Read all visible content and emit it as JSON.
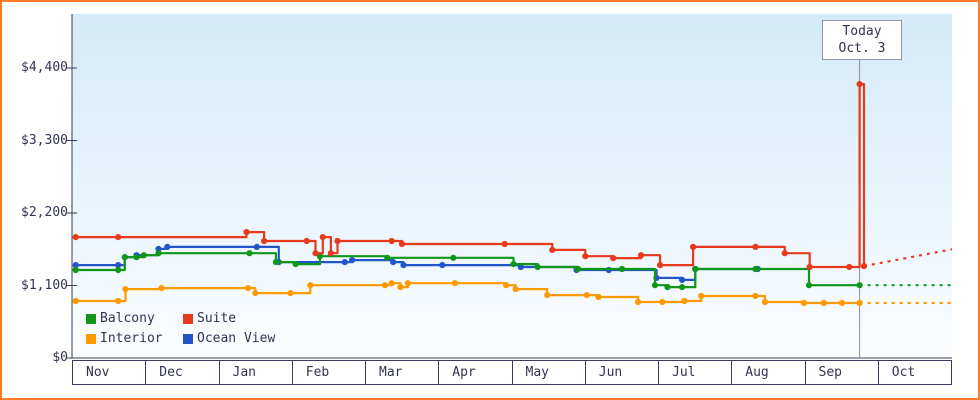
{
  "colors": {
    "frame_border": "#ff7b29",
    "axis": "#3a3a5e",
    "today_line": "#8c8ca3",
    "plot_bg_top": "#d3eaf8",
    "plot_bg_bottom": "#fbfdff"
  },
  "today_annotation": {
    "line1": "Today",
    "line2": "Oct. 3"
  },
  "chart_data": {
    "type": "line",
    "description": "Cruise cabin price history by category with dotted price projection after today",
    "x_unit": "months",
    "x_range": [
      0,
      12
    ],
    "y_range": [
      0,
      4400
    ],
    "x_tick_labels": [
      "Nov",
      "Dec",
      "Jan",
      "Feb",
      "Mar",
      "Apr",
      "May",
      "Jun",
      "Jul",
      "Aug",
      "Sep",
      "Oct"
    ],
    "y_tick_labels": [
      "$0",
      "$1,100",
      "$2,200",
      "$3,300",
      "$4,400"
    ],
    "y_tick_values": [
      0,
      1100,
      2200,
      3300,
      4400
    ],
    "grid": false,
    "legend_position": "bottom-left",
    "today": {
      "x": 10.74
    },
    "series": [
      {
        "name": "Balcony",
        "color": "#109618",
        "points": [
          [
            0.05,
            1335
          ],
          [
            0.63,
            1335
          ],
          [
            0.72,
            1530
          ],
          [
            0.88,
            1530
          ],
          [
            0.98,
            1560
          ],
          [
            1.18,
            1590
          ],
          [
            2.42,
            1590
          ],
          [
            2.78,
            1455
          ],
          [
            3.05,
            1425
          ],
          [
            3.38,
            1545
          ],
          [
            4.3,
            1520
          ],
          [
            5.2,
            1520
          ],
          [
            6.02,
            1425
          ],
          [
            6.35,
            1380
          ],
          [
            6.9,
            1350
          ],
          [
            7.5,
            1350
          ],
          [
            7.95,
            1105
          ],
          [
            8.12,
            1075
          ],
          [
            8.32,
            1075
          ],
          [
            8.5,
            1350
          ],
          [
            9.32,
            1350
          ],
          [
            10.05,
            1105
          ],
          [
            10.74,
            1105
          ]
        ],
        "forecast": [
          [
            10.74,
            1105
          ],
          [
            12,
            1105
          ]
        ]
      },
      {
        "name": "Suite",
        "color": "#e8391d",
        "points": [
          [
            0.05,
            1835
          ],
          [
            0.63,
            1835
          ],
          [
            2.38,
            1910
          ],
          [
            2.62,
            1775
          ],
          [
            3.2,
            1775
          ],
          [
            3.32,
            1590
          ],
          [
            3.42,
            1835
          ],
          [
            3.53,
            1590
          ],
          [
            3.62,
            1775
          ],
          [
            4.36,
            1775
          ],
          [
            4.5,
            1730
          ],
          [
            5.9,
            1730
          ],
          [
            6.55,
            1640
          ],
          [
            7.0,
            1545
          ],
          [
            7.38,
            1515
          ],
          [
            7.76,
            1560
          ],
          [
            8.02,
            1410
          ],
          [
            8.47,
            1685
          ],
          [
            9.32,
            1685
          ],
          [
            9.72,
            1590
          ],
          [
            10.06,
            1380
          ],
          [
            10.6,
            1380
          ],
          [
            10.74,
            4155
          ],
          [
            10.8,
            1395
          ]
        ],
        "forecast": [
          [
            10.8,
            1395
          ],
          [
            12,
            1650
          ]
        ]
      },
      {
        "name": "Interior",
        "color": "#ff9900",
        "points": [
          [
            0.05,
            865
          ],
          [
            0.63,
            865
          ],
          [
            0.73,
            1045
          ],
          [
            1.22,
            1060
          ],
          [
            2.4,
            1060
          ],
          [
            2.5,
            985
          ],
          [
            2.98,
            985
          ],
          [
            3.25,
            1105
          ],
          [
            4.27,
            1105
          ],
          [
            4.36,
            1135
          ],
          [
            4.48,
            1075
          ],
          [
            4.58,
            1135
          ],
          [
            5.22,
            1135
          ],
          [
            5.92,
            1105
          ],
          [
            6.05,
            1045
          ],
          [
            6.48,
            955
          ],
          [
            7.02,
            955
          ],
          [
            7.18,
            925
          ],
          [
            7.72,
            850
          ],
          [
            8.05,
            850
          ],
          [
            8.35,
            865
          ],
          [
            8.58,
            940
          ],
          [
            9.32,
            940
          ],
          [
            9.45,
            850
          ],
          [
            9.98,
            835
          ],
          [
            10.25,
            835
          ],
          [
            10.5,
            835
          ],
          [
            10.74,
            835
          ]
        ],
        "forecast": [
          [
            10.74,
            835
          ],
          [
            12,
            835
          ]
        ]
      },
      {
        "name": "Ocean View",
        "color": "#2255cc",
        "points": [
          [
            0.05,
            1410
          ],
          [
            0.63,
            1410
          ],
          [
            0.72,
            1530
          ],
          [
            0.88,
            1560
          ],
          [
            1.18,
            1655
          ],
          [
            1.3,
            1685
          ],
          [
            2.52,
            1685
          ],
          [
            2.82,
            1455
          ],
          [
            3.72,
            1455
          ],
          [
            3.82,
            1485
          ],
          [
            4.38,
            1455
          ],
          [
            4.52,
            1410
          ],
          [
            5.05,
            1410
          ],
          [
            6.12,
            1380
          ],
          [
            6.88,
            1335
          ],
          [
            7.32,
            1335
          ],
          [
            7.97,
            1215
          ],
          [
            8.32,
            1185
          ],
          [
            8.5,
            1350
          ],
          [
            9.35,
            1350
          ]
        ]
      }
    ]
  }
}
